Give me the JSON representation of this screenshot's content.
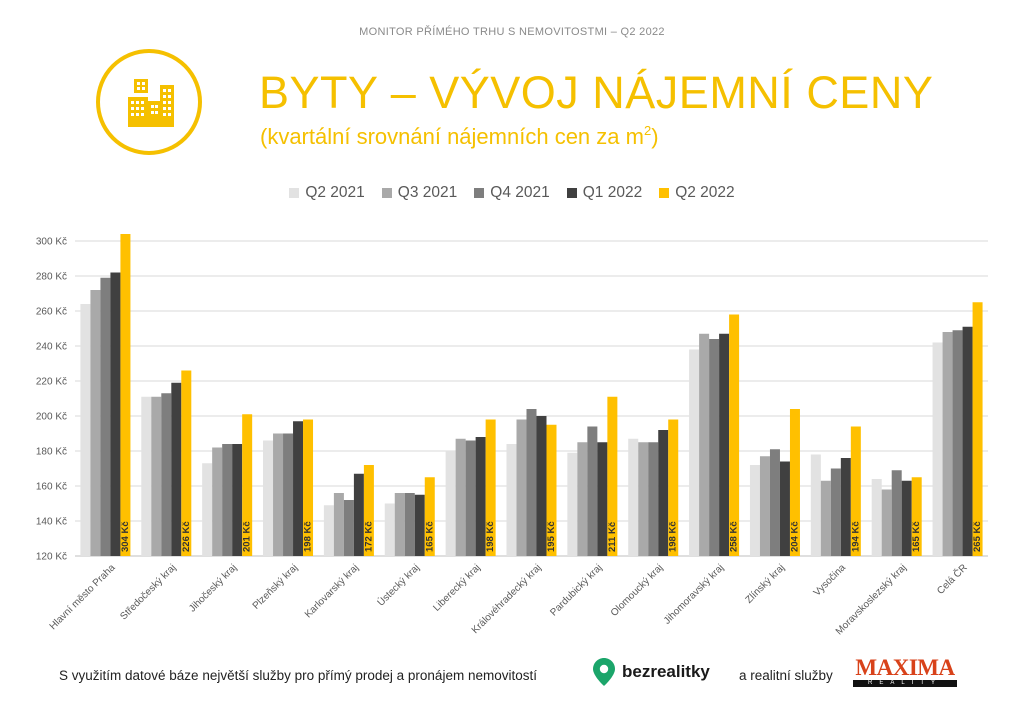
{
  "header": {
    "kicker": "MONITOR PŘÍMÉHO TRHU S NEMOVITOSTMI – Q2 2022",
    "title": "BYTY – VÝVOJ NÁJEMNÍ CENY",
    "subtitle_main": "(kvartální srovnání nájemních cen za m",
    "subtitle_sup": "2",
    "subtitle_end": ")",
    "icon": "apartment-buildings-icon",
    "accent_color": "#F5C000"
  },
  "chart_data": {
    "type": "bar",
    "categories": [
      "Hlavní město Praha",
      "Středočeský kraj",
      "Jihočeský kraj",
      "Plzeňský kraj",
      "Karlovarský kraj",
      "Ústecký kraj",
      "Liberecký kraj",
      "Královéhradecký kraj",
      "Pardubický kraj",
      "Olomoucký kraj",
      "Jihomoravský kraj",
      "Zlínský kraj",
      "Vysočina",
      "Moravskoslezský kraj",
      "Celá ČR"
    ],
    "series": [
      {
        "name": "Q2 2021",
        "color": "#E2E2E2",
        "values": [
          264,
          211,
          173,
          186,
          149,
          150,
          180,
          184,
          179,
          187,
          238,
          172,
          178,
          164,
          242
        ]
      },
      {
        "name": "Q3 2021",
        "color": "#A9A9A9",
        "values": [
          272,
          211,
          182,
          190,
          156,
          156,
          187,
          198,
          185,
          185,
          247,
          177,
          163,
          158,
          248
        ]
      },
      {
        "name": "Q4 2021",
        "color": "#7E7E7E",
        "values": [
          279,
          213,
          184,
          190,
          152,
          156,
          186,
          204,
          194,
          185,
          244,
          181,
          170,
          169,
          249
        ]
      },
      {
        "name": "Q1 2022",
        "color": "#404040",
        "values": [
          282,
          219,
          184,
          197,
          167,
          155,
          188,
          200,
          185,
          192,
          247,
          174,
          176,
          163,
          251
        ]
      },
      {
        "name": "Q2 2022",
        "color": "#FFC000",
        "values": [
          304,
          226,
          201,
          198,
          172,
          165,
          198,
          195,
          211,
          198,
          258,
          204,
          194,
          165,
          265
        ]
      }
    ],
    "data_labels": [
      "304 Kč",
      "226 Kč",
      "201 Kč",
      "198 Kč",
      "172 Kč",
      "165 Kč",
      "198 Kč",
      "195 Kč",
      "211 Kč",
      "198 Kč",
      "258 Kč",
      "204 Kč",
      "194 Kč",
      "165 Kč",
      "265 Kč"
    ],
    "y_ticks": [
      "120 Kč",
      "140 Kč",
      "160 Kč",
      "180 Kč",
      "200 Kč",
      "220 Kč",
      "240 Kč",
      "260 Kč",
      "280 Kč",
      "300 Kč"
    ],
    "ylim": [
      120,
      310
    ],
    "grid": true,
    "legend_position": "top-center"
  },
  "footer": {
    "text": "S využitím datové báze největší služby pro přímý prodej a pronájem nemovitostí",
    "brand": "bezrealitky",
    "brand_icon": "location-pin-icon",
    "text2": "a realitní služby",
    "maxima_word": "MAXIMA",
    "maxima_sub": "REALITY",
    "maxima_color": "#D8421A"
  }
}
